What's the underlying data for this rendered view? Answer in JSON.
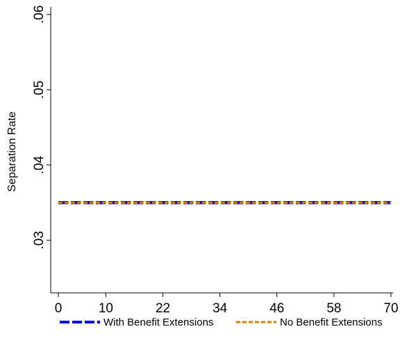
{
  "chart_data": {
    "type": "line",
    "title": "",
    "xlabel": "",
    "ylabel": "Separation Rate",
    "x_ticks": [
      0,
      10,
      22,
      34,
      46,
      58,
      70
    ],
    "xlim": [
      0,
      70
    ],
    "y_ticks": [
      ".03",
      ".04",
      ".05",
      ".06"
    ],
    "ylim": [
      0.023,
      0.061
    ],
    "grid": false,
    "legend_placement": "bottom",
    "series": [
      {
        "name": "With Benefit Extensions",
        "color": "#0000ff",
        "dash": "long-dash",
        "x": [
          0,
          70
        ],
        "y": [
          0.035,
          0.035
        ]
      },
      {
        "name": "No Benefit Extensions",
        "color": "#e07b00",
        "dash": "short-dash",
        "x": [
          0,
          70
        ],
        "y": [
          0.035,
          0.035
        ]
      }
    ]
  }
}
